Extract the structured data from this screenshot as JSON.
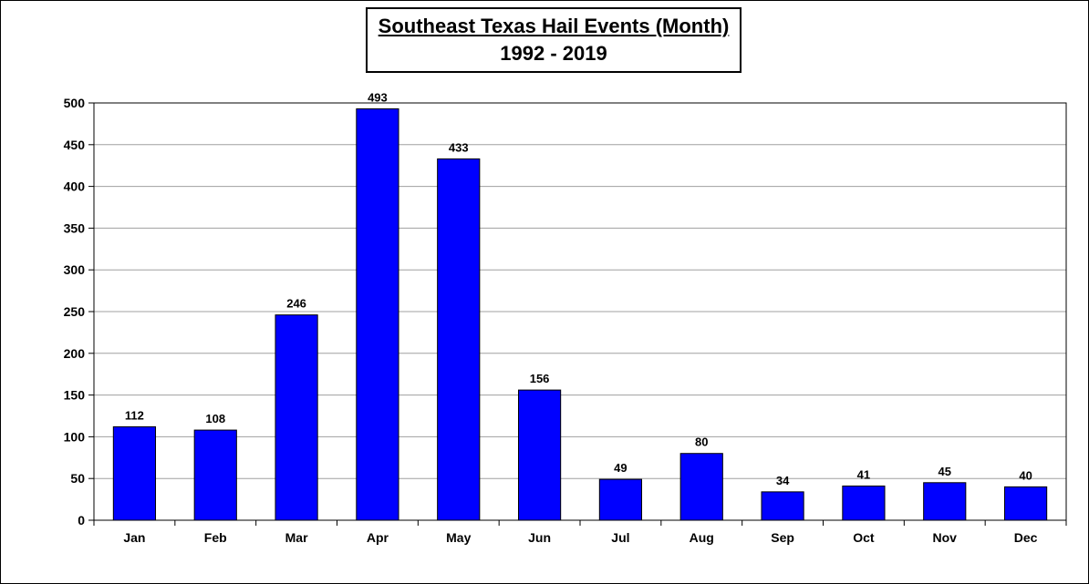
{
  "chart_data": {
    "type": "bar",
    "title": "Southeast Texas Hail Events (Month)",
    "subtitle": "1992 - 2019",
    "xlabel": "",
    "ylabel": "",
    "categories": [
      "Jan",
      "Feb",
      "Mar",
      "Apr",
      "May",
      "Jun",
      "Jul",
      "Aug",
      "Sep",
      "Oct",
      "Nov",
      "Dec"
    ],
    "values": [
      112,
      108,
      246,
      493,
      433,
      156,
      49,
      80,
      34,
      41,
      45,
      40
    ],
    "ylim": [
      0,
      500
    ],
    "yticks": [
      0,
      50,
      100,
      150,
      200,
      250,
      300,
      350,
      400,
      450,
      500
    ],
    "grid": true,
    "bar_color": "#0000FF",
    "data_labels": true
  }
}
